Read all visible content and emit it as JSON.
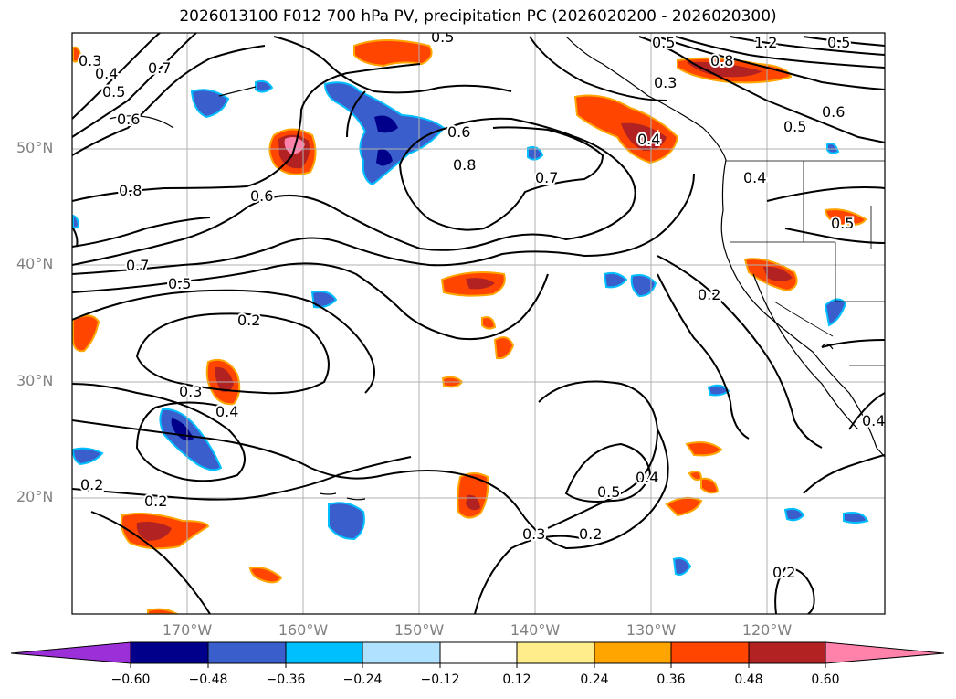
{
  "title": "2026013100 F012 700 hPa PV, precipitation PC (2026020200 - 2026020300)",
  "lat_labels": [
    "50°N",
    "40°N",
    "30°N",
    "20°N"
  ],
  "lon_labels": [
    "170°W",
    "160°W",
    "150°W",
    "140°W",
    "130°W",
    "120°W"
  ],
  "colorbar": {
    "ticks": [
      "−0.60",
      "−0.48",
      "−0.36",
      "−0.24",
      "−0.12",
      "0.12",
      "0.24",
      "0.36",
      "0.48",
      "0.60"
    ],
    "colors": [
      "#9b30d9",
      "#00008b",
      "#3a5fcd",
      "#00bfff",
      "#b0e2ff",
      "#ffffff",
      "#ffec8b",
      "#ffa500",
      "#ff4500",
      "#b22222",
      "#ff82ab"
    ]
  },
  "contour_labels": [
    "0.3",
    "0.4",
    "0.5",
    "0.7",
    "0.6",
    "0.8",
    "0.6",
    "0.7",
    "0.5",
    "0.2",
    "0.3",
    "0.4",
    "0.2",
    "0.2",
    "0.6",
    "0.8",
    "0.7",
    "0.5",
    "0.3",
    "0.8",
    "1.2",
    "0.6",
    "0.5",
    "0.4",
    "0.4",
    "0.5",
    "0.2",
    "0.4",
    "0.5",
    "0.3",
    "0.2",
    "0.2",
    "0.5",
    "0.5",
    "0.4"
  ]
}
